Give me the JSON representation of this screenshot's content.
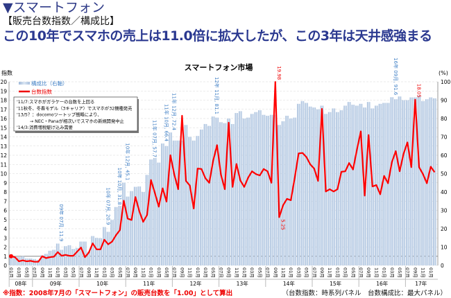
{
  "header": {
    "section": "▼スマートフォン",
    "subtitle": "【販売台数指数／構成比】",
    "headline": "この10年でスマホの売上は11.0倍に拡大したが、この3年は天井感強まる"
  },
  "footer": {
    "note": "※指数：2008年7月の「スマートフォン」の販売台数を「1.00」として算出",
    "source": "（台数指数：時系列パネル　台数構成比：最大パネル）"
  },
  "chart_data": {
    "type": "bar+line",
    "title": "スマートフォン市場",
    "ylabel_left": "指数",
    "ylabel_right": "(%)",
    "ylim_left": [
      0,
      20
    ],
    "ylim_right": [
      0,
      100
    ],
    "yticks_left": [
      "0",
      "1",
      "2",
      "3",
      "4",
      "5",
      "6",
      "7",
      "8",
      "9",
      "10",
      "11",
      "12",
      "13",
      "14",
      "15",
      "16",
      "17",
      "18",
      "19",
      "20"
    ],
    "yticks_right": [
      "0",
      "10",
      "20",
      "30",
      "40",
      "50",
      "60",
      "70",
      "80",
      "90",
      "100"
    ],
    "grid": true,
    "legend_position": "top-left",
    "years": [
      "08年",
      "09年",
      "10年",
      "11年",
      "12年",
      "13年",
      "14年",
      "15年",
      "16年",
      "17年"
    ],
    "start_month": "2008-07",
    "month_labels": [
      "07月",
      "08月",
      "09月",
      "10月",
      "11月",
      "12月",
      "01月",
      "02月",
      "03月",
      "04月",
      "05月",
      "06月"
    ],
    "series": [
      {
        "name": "構成比（右軸）",
        "type": "bar",
        "axis": "right",
        "color": "#b9cce4",
        "values": [
          6,
          5,
          4.5,
          5,
          3.8,
          3.8,
          3.5,
          3,
          5.5,
          6.3,
          8,
          8.5,
          11.9,
          8.5,
          10.5,
          11,
          9,
          9.5,
          13,
          13,
          7.5,
          16,
          15,
          14.8,
          20.9,
          18.3,
          24.8,
          31.8,
          32.5,
          45.1,
          37.5,
          40.5,
          42.8,
          43,
          40,
          49.3,
          57.7,
          58.5,
          56,
          66.4,
          65,
          72.4,
          68,
          68,
          68,
          76.5,
          70,
          68,
          70.5,
          74,
          77,
          76,
          81.1,
          80.5,
          78,
          77.5,
          80,
          77,
          83,
          84,
          80,
          80.5,
          82.5,
          83.5,
          84.5,
          82,
          81.5,
          82,
          82,
          76.5,
          78.5,
          81.5,
          80,
          80.5,
          88,
          89.5,
          88.5,
          86.5,
          86,
          85,
          87,
          82.5,
          83.5,
          85.5,
          83.5,
          84.5,
          87,
          89,
          87.5,
          87,
          88,
          86,
          89,
          85.5,
          87,
          88,
          88.5,
          88.5,
          91.6,
          90.5,
          92,
          90,
          90,
          91.5,
          91.5,
          92.5,
          89.5,
          90.5,
          91.5,
          91
        ]
      },
      {
        "name": "台数指数",
        "type": "line",
        "axis": "left",
        "color": "#ff0000",
        "values": [
          1.0,
          0.9,
          0.45,
          0.55,
          0.45,
          0.5,
          0.4,
          0.4,
          1.0,
          0.8,
          0.9,
          0.95,
          1.45,
          1.05,
          1.15,
          1.05,
          1.05,
          1.5,
          1.95,
          0.9,
          1.4,
          2.4,
          1.75,
          1.75,
          2.8,
          2.3,
          2.6,
          3.3,
          3.85,
          7.05,
          5.1,
          4.95,
          7.45,
          5.9,
          4.75,
          5.5,
          9.3,
          7.9,
          6.4,
          8.4,
          6.95,
          12.0,
          9.9,
          8.3,
          16.3,
          9.2,
          8.7,
          6.2,
          10.55,
          10.5,
          9.5,
          9.0,
          11.4,
          13.1,
          9.9,
          8.3,
          15.55,
          8.55,
          11.05,
          9.25,
          8.55,
          9.55,
          10.25,
          9.95,
          9.8,
          10.5,
          10.25,
          9.0,
          19.98,
          5.25,
          6.55,
          7.25,
          7.1,
          9.55,
          12.2,
          12.25,
          11.8,
          11.0,
          10.55,
          9.2,
          17.05,
          8.05,
          8.3,
          8.05,
          8.3,
          10.2,
          10.25,
          11.15,
          10.45,
          12.6,
          14.6,
          7.6,
          14.2,
          8.6,
          8.75,
          7.75,
          9.75,
          8.95,
          11.25,
          12.45,
          10.25,
          12.15,
          13.4,
          10.7,
          18.05,
          10.7,
          9.95,
          8.95,
          10.75,
          10.15
        ]
      }
    ],
    "bar_annotations": [
      {
        "index": 12,
        "text": "09年 07月, 11.9"
      },
      {
        "index": 24,
        "text": "10年 07月, 20.9"
      },
      {
        "index": 27,
        "text": "10年 10月, 31.8"
      },
      {
        "index": 29,
        "text": "10年 12月, 45.1"
      },
      {
        "index": 36,
        "text": "11年 07月, 57.7"
      },
      {
        "index": 39,
        "text": "11年 10月, 66.4"
      },
      {
        "index": 41,
        "text": "11年 12月, 72.4"
      },
      {
        "index": 52,
        "text": "12年 11月, 81.1"
      },
      {
        "index": 98,
        "text": "16年 09月, 91.6"
      }
    ],
    "line_annotations": [
      {
        "index": 68,
        "text": "19.98",
        "pos": "above"
      },
      {
        "index": 69,
        "text": "5.25",
        "pos": "below"
      },
      {
        "index": 104,
        "text": "18.05",
        "pos": "above"
      }
    ],
    "notes": [
      "'11/7:スマホがガラケーの台数を上回る",
      "'11秋冬、冬春モデル（3キャリア）でスマホが32機種発売",
      "'13/5？：docomoツートップ戦略により、",
      "　　　→ NEC・Panaが相次いでスマホの新規開発中止",
      "'14/3:消費増税駆け込み需要"
    ]
  }
}
